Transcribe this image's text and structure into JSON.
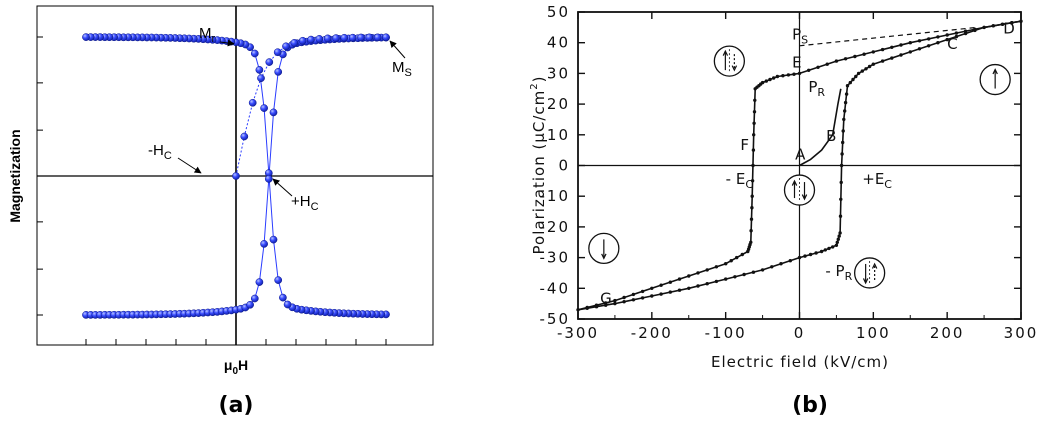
{
  "chart_data": [
    {
      "panel": "(a)",
      "type": "scatter",
      "xlabel": "μ0H",
      "xlabel_main": "μ",
      "xlabel_sub": "0",
      "xlabel_tail": "H",
      "ylabel": "Magnetization",
      "xlim": [
        -1,
        1
      ],
      "ylim": [
        -1.1,
        1.1
      ],
      "grid": false,
      "axis_ticks_labeled": false,
      "curve": {
        "Ms": 1.0,
        "Hc": 0.22,
        "width": 0.055,
        "xmin": -1.0,
        "xmax": 1.0,
        "points_per_branch": 65
      },
      "series": [
        {
          "branch": "descending",
          "direction": "Ms to -Ms",
          "zero_crossing": -0.22
        },
        {
          "branch": "ascending",
          "direction": "-Ms to Ms",
          "zero_crossing": 0.22
        },
        {
          "branch": "initial",
          "direction": "origin to Ms",
          "zero_crossing": 0.0
        }
      ],
      "annotations": {
        "mr": {
          "main": "M",
          "sub": "r",
          "x": 0.0,
          "y": 0.93
        },
        "ms": {
          "main": "M",
          "sub": "S",
          "x": 1.0,
          "y": 1.0
        },
        "nhc": {
          "main": "-H",
          "sub": "C",
          "x": -0.22,
          "y": 0.0
        },
        "phc": {
          "main": "+H",
          "sub": "C",
          "x": 0.22,
          "y": 0.0
        }
      }
    },
    {
      "panel": "(b)",
      "type": "line",
      "xlabel": "Electric field  (kV/cm)",
      "ylabel": "Polarization  (μC/cm²)",
      "ylabel_main": "Polarization  (μC/cm",
      "ylabel_sup": "2",
      "ylabel_end": ")",
      "xlim": [
        -300,
        300
      ],
      "ylim": [
        -50,
        50
      ],
      "xticks": [
        "-300",
        "-200",
        "-100",
        "0",
        "100",
        "200",
        "300"
      ],
      "yticks": [
        "-50",
        "-40",
        "-30",
        "-20",
        "-10",
        "0",
        "10",
        "20",
        "30",
        "40",
        "50"
      ],
      "grid": false,
      "series": [
        {
          "branch": "upper",
          "points": [
            [
              300,
              47
            ],
            [
              250,
              45
            ],
            [
              200,
              42.5
            ],
            [
              150,
              40
            ],
            [
              100,
              37
            ],
            [
              50,
              34
            ],
            [
              0,
              30
            ],
            [
              -30,
              29
            ],
            [
              -50,
              27
            ],
            [
              -60,
              25
            ],
            [
              -62,
              10
            ],
            [
              -64,
              -10
            ],
            [
              -66,
              -25
            ],
            [
              -70,
              -28
            ],
            [
              -100,
              -32
            ],
            [
              -150,
              -36
            ],
            [
              -200,
              -40
            ],
            [
              -250,
              -44
            ],
            [
              -300,
              -47
            ]
          ]
        },
        {
          "branch": "lower",
          "points": [
            [
              -300,
              -47
            ],
            [
              -250,
              -45
            ],
            [
              -200,
              -42.5
            ],
            [
              -150,
              -40
            ],
            [
              -100,
              -37
            ],
            [
              -50,
              -34
            ],
            [
              0,
              -30
            ],
            [
              30,
              -28
            ],
            [
              50,
              -26
            ],
            [
              55,
              -22
            ],
            [
              57,
              0
            ],
            [
              60,
              15
            ],
            [
              65,
              26
            ],
            [
              80,
              30
            ],
            [
              100,
              33
            ],
            [
              150,
              37
            ],
            [
              200,
              41
            ],
            [
              250,
              45
            ],
            [
              300,
              47
            ]
          ]
        },
        {
          "branch": "initial",
          "points": [
            [
              0,
              0
            ],
            [
              15,
              2
            ],
            [
              30,
              5
            ],
            [
              45,
              10
            ],
            [
              52,
              20
            ],
            [
              56,
              25
            ]
          ]
        },
        {
          "branch": "saturation-extrapolation",
          "style": "dashed",
          "points": [
            [
              0,
              39
            ],
            [
              160,
              43
            ],
            [
              240,
              45
            ]
          ]
        }
      ],
      "annotations": {
        "ps": {
          "main": "P",
          "sub": "S",
          "x": -10,
          "y": 41
        },
        "e": {
          "text": "E",
          "x": -10,
          "y": 32
        },
        "pr": {
          "main": "P",
          "sub": "R",
          "x": 12,
          "y": 24
        },
        "b": {
          "text": "B",
          "x": 36,
          "y": 8
        },
        "a": {
          "text": "A",
          "x": -6,
          "y": 2
        },
        "f": {
          "text": "F",
          "x": -80,
          "y": 5
        },
        "nec": {
          "main": "- E",
          "sub": "C",
          "x": -100,
          "y": -6
        },
        "pec": {
          "main": "+E",
          "sub": "C",
          "x": 85,
          "y": -6
        },
        "npr": {
          "main": "- P",
          "sub": "R",
          "x": 35,
          "y": -36
        },
        "c": {
          "text": "C",
          "x": 200,
          "y": 38
        },
        "d": {
          "text": "D",
          "x": 276,
          "y": 43
        },
        "g": {
          "text": "G",
          "x": -270,
          "y": -45
        }
      },
      "domain_icons": [
        {
          "name": "domains-mixed-up-icon",
          "x": -95,
          "y": 34
        },
        {
          "name": "domain-up-icon",
          "x": 265,
          "y": 28
        },
        {
          "name": "domains-mixed-icon",
          "x": 0,
          "y": -8
        },
        {
          "name": "domain-down-icon",
          "x": -265,
          "y": -27
        },
        {
          "name": "domains-mixed-down-icon",
          "x": 95,
          "y": -35
        }
      ]
    }
  ],
  "captions": {
    "a": "(a)",
    "b": "(b)"
  }
}
